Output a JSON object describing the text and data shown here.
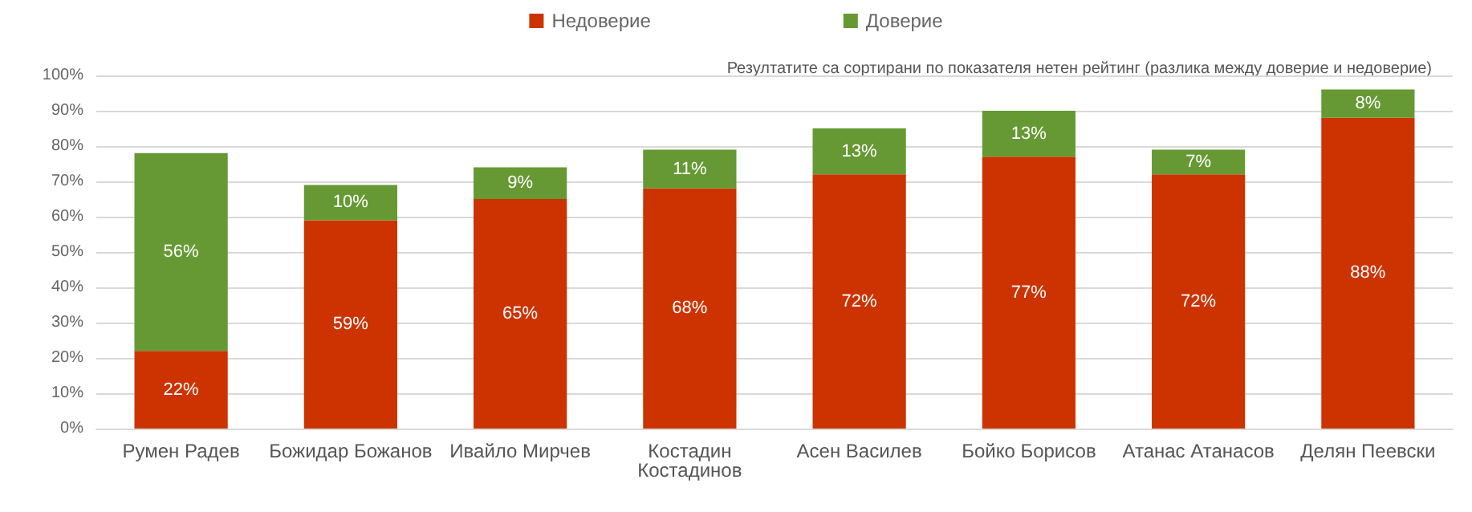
{
  "chart_data": {
    "type": "bar",
    "stacked": true,
    "categories": [
      "Румен Радев",
      "Божидар Божанов",
      "Ивайло Мирчев",
      "Костадин Костадинов",
      "Асен Василев",
      "Бойко Борисов",
      "Атанас Атанасов",
      "Делян Пеевски"
    ],
    "series": [
      {
        "name": "Недоверие",
        "color": "#cc3300",
        "values": [
          22,
          59,
          65,
          68,
          72,
          77,
          72,
          88
        ],
        "value_labels": [
          "22%",
          "59%",
          "65%",
          "68%",
          "72%",
          "77%",
          "72%",
          "88%"
        ]
      },
      {
        "name": "Доверие",
        "color": "#669933",
        "values": [
          56,
          10,
          9,
          11,
          13,
          13,
          7,
          8
        ],
        "value_labels": [
          "56%",
          "10%",
          "9%",
          "11%",
          "13%",
          "13%",
          "7%",
          "8%"
        ]
      }
    ],
    "ylim": [
      0,
      100
    ],
    "yticks": [
      {
        "value": 0,
        "label": "0%"
      },
      {
        "value": 10,
        "label": "10%"
      },
      {
        "value": 20,
        "label": "20%"
      },
      {
        "value": 30,
        "label": "30%"
      },
      {
        "value": 40,
        "label": "40%"
      },
      {
        "value": 50,
        "label": "50%"
      },
      {
        "value": 60,
        "label": "60%"
      },
      {
        "value": 70,
        "label": "70%"
      },
      {
        "value": 80,
        "label": "80%"
      },
      {
        "value": 90,
        "label": "90%"
      },
      {
        "value": 100,
        "label": "100%"
      }
    ],
    "grid": "y",
    "legend": "top",
    "annotations": [
      "Резултатите са сортирани по показателя нетен рейтинг (разлика между доверие и недоверие)"
    ]
  }
}
